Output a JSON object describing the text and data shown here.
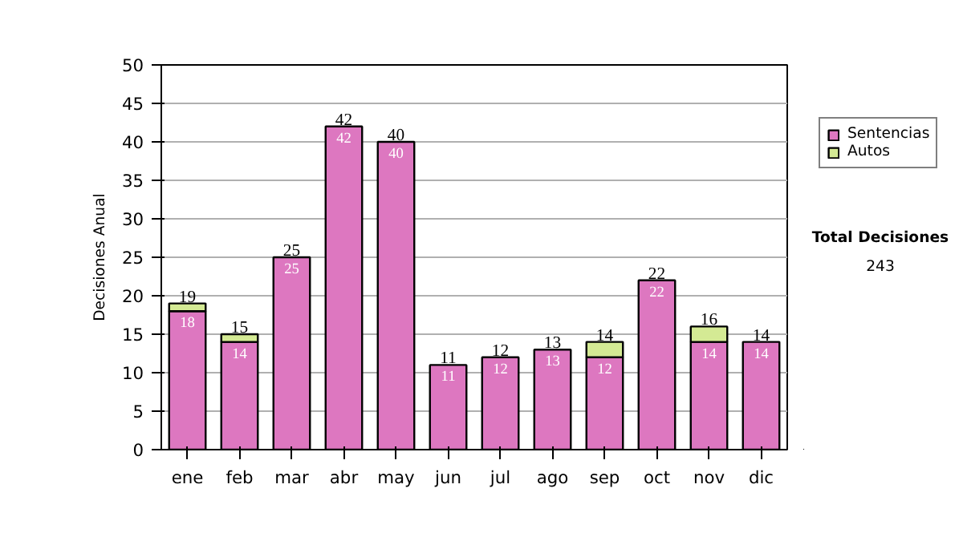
{
  "chart_data": {
    "type": "bar",
    "stacked": true,
    "ylabel": "Decisiones Anual",
    "categories": [
      "ene",
      "feb",
      "mar",
      "abr",
      "may",
      "jun",
      "jul",
      "ago",
      "sep",
      "oct",
      "nov",
      "dic"
    ],
    "series": [
      {
        "name": "Sentencias",
        "color": "#dd77c0",
        "values": [
          18,
          14,
          25,
          42,
          40,
          11,
          12,
          13,
          12,
          22,
          14,
          14
        ],
        "value_labels": [
          "18",
          "14",
          "25",
          "42",
          "40",
          "11",
          "12",
          "13",
          "12",
          "22",
          "14",
          "14"
        ]
      },
      {
        "name": "Autos",
        "color": "#d4ea94",
        "values": [
          1,
          1,
          null,
          null,
          null,
          null,
          null,
          null,
          2,
          null,
          2,
          null
        ]
      }
    ],
    "totals": [
      "19",
      "15",
      "25",
      "42",
      "40",
      "11",
      "12",
      "13",
      "14",
      "22",
      "16",
      "14"
    ],
    "ylim": [
      0,
      50
    ],
    "yticks": [
      0,
      5,
      10,
      15,
      20,
      25,
      30,
      35,
      40,
      45,
      50
    ],
    "grid": "y",
    "legend": "right",
    "annotations": [
      "Total Decisiones",
      "243"
    ]
  }
}
